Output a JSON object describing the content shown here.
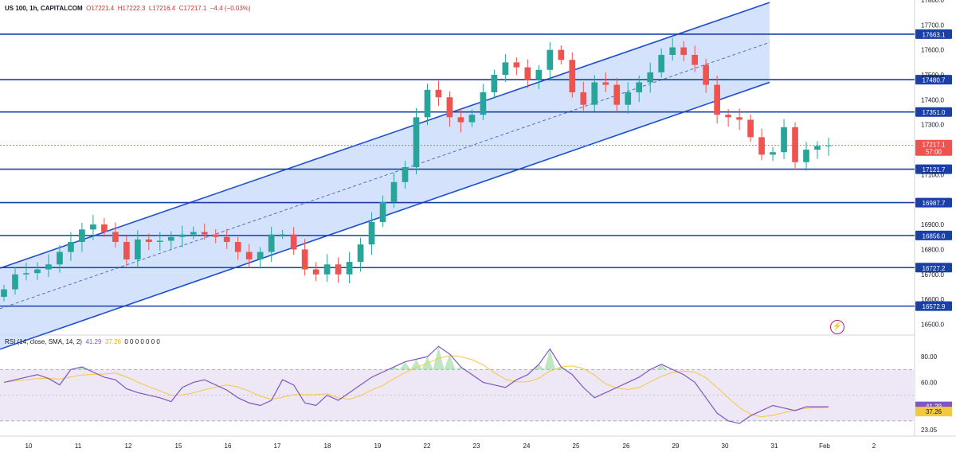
{
  "legend": {
    "symbol": "US 100, 1h, CAPITALCOM",
    "open": "O17221.4",
    "high": "H17222.3",
    "low": "L17216.4",
    "close": "C17217.1",
    "change": "−4.4 (−0.03%)"
  },
  "rsi_legend": {
    "label": "RSI (14, close, SMA, 14, 2)",
    "rsi_value": "41.29",
    "ma_value": "37.26",
    "zeros": "0 0 0 0 0 0 0"
  },
  "colors": {
    "channel_fill": "#c5d8fb",
    "channel_line": "#1e4fcf",
    "level_line": "#1a3fa8",
    "price_badge": "#ef5350",
    "up_candle": "#26a69a",
    "down_candle": "#ef5350",
    "rsi_line": "#7e57c2",
    "rsi_ma": "#f5c842",
    "rsi_band": "#ede7f6"
  },
  "chart_data": [
    {
      "type": "candlestick",
      "ylim": [
        16460,
        17800
      ],
      "y_ticks": [
        "17800.0",
        "17700.0",
        "17600.0",
        "17500.0",
        "17400.0",
        "17300.0",
        "17100.0",
        "16900.0",
        "16800.0",
        "16700.0",
        "16600.0",
        "16500.0"
      ],
      "x_ticks": [
        "10",
        "11",
        "12",
        "15",
        "16",
        "17",
        "18",
        "19",
        "22",
        "23",
        "24",
        "25",
        "26",
        "29",
        "30",
        "31",
        "Feb",
        "2"
      ],
      "levels": [
        {
          "value": 17663.1,
          "label": "17663.1"
        },
        {
          "value": 17480.7,
          "label": "17480.7"
        },
        {
          "value": 17351.0,
          "label": "17351.0"
        },
        {
          "value": 17121.7,
          "label": "17121.7"
        },
        {
          "value": 16987.7,
          "label": "16987.7"
        },
        {
          "value": 16856.0,
          "label": "16856.0"
        },
        {
          "value": 16727.2,
          "label": "16727.2"
        },
        {
          "value": 16572.9,
          "label": "16572.9"
        }
      ],
      "current_price": {
        "value": 17217.1,
        "label": "17217.1",
        "countdown": "57:00"
      },
      "channel": {
        "upper": [
          [
            0,
            16725
          ],
          [
            75,
            17790
          ]
        ],
        "lower": [
          [
            0,
            16400
          ],
          [
            75,
            17470
          ]
        ],
        "start_index": 0,
        "end_index": 75
      },
      "closes": [
        16640,
        16700,
        16705,
        16720,
        16740,
        16790,
        16830,
        16880,
        16900,
        16870,
        16830,
        16760,
        16840,
        16830,
        16835,
        16850,
        16860,
        16870,
        16860,
        16850,
        16830,
        16790,
        16760,
        16790,
        16860,
        16860,
        16800,
        16720,
        16700,
        16740,
        16700,
        16750,
        16820,
        16910,
        16990,
        17070,
        17130,
        17330,
        17440,
        17410,
        17330,
        17310,
        17340,
        17430,
        17500,
        17550,
        17530,
        17480,
        17520,
        17600,
        17560,
        17430,
        17380,
        17470,
        17460,
        17380,
        17430,
        17470,
        17510,
        17580,
        17610,
        17580,
        17540,
        17460,
        17340,
        17330,
        17320,
        17250,
        17180,
        17190,
        17290,
        17150,
        17200,
        17215,
        17217
      ]
    },
    {
      "type": "line",
      "title": "RSI (14, close, SMA, 14, 2)",
      "ylim": [
        20,
        90
      ],
      "y_ticks": [
        "80.00",
        "60.00",
        "41.00",
        "23.05"
      ],
      "series": [
        {
          "values": [
            60,
            62,
            64,
            66,
            63,
            58,
            70,
            72,
            68,
            64,
            62,
            55,
            52,
            50,
            48,
            45,
            56,
            60,
            62,
            58,
            54,
            48,
            44,
            42,
            46,
            62,
            58,
            44,
            42,
            50,
            46,
            52,
            58,
            64,
            68,
            72,
            76,
            78,
            80,
            88,
            82,
            72,
            66,
            60,
            58,
            56,
            62,
            66,
            74,
            86,
            72,
            66,
            56,
            48,
            52,
            56,
            60,
            64,
            70,
            74,
            70,
            66,
            60,
            48,
            36,
            30,
            28,
            34,
            38,
            42,
            40,
            38,
            41,
            41,
            41
          ]
        }
      ],
      "last_value": "41.29",
      "ma_last_value": "37.26",
      "bands": [
        70,
        30
      ]
    }
  ]
}
